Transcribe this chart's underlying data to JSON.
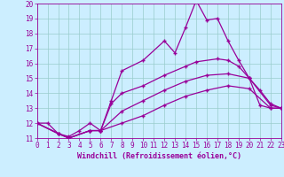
{
  "bg_color": "#cceeff",
  "line_color": "#990099",
  "grid_color": "#99cccc",
  "xmin": 0,
  "xmax": 23,
  "ymin": 11,
  "ymax": 20,
  "yticks": [
    11,
    12,
    13,
    14,
    15,
    16,
    17,
    18,
    19,
    20
  ],
  "xticks": [
    0,
    1,
    2,
    3,
    4,
    5,
    6,
    7,
    8,
    9,
    10,
    11,
    12,
    13,
    14,
    15,
    16,
    17,
    18,
    19,
    20,
    21,
    22,
    23
  ],
  "lines": [
    {
      "x": [
        0,
        1,
        2,
        3,
        4,
        5,
        6,
        7,
        8,
        10,
        12,
        13,
        14,
        15,
        16,
        17,
        18,
        19,
        20,
        21,
        22,
        23
      ],
      "y": [
        12.0,
        12.0,
        11.3,
        11.1,
        11.5,
        12.0,
        11.5,
        13.5,
        15.5,
        16.2,
        17.5,
        16.7,
        18.4,
        20.2,
        18.9,
        19.0,
        17.5,
        16.2,
        15.0,
        13.2,
        13.0,
        13.0
      ]
    },
    {
      "x": [
        0,
        2,
        3,
        5,
        6,
        7,
        8,
        10,
        12,
        14,
        15,
        17,
        18,
        19,
        20,
        21,
        22,
        23
      ],
      "y": [
        12.0,
        11.3,
        11.0,
        11.5,
        11.5,
        13.3,
        14.0,
        14.5,
        15.2,
        15.8,
        16.1,
        16.3,
        16.2,
        15.8,
        15.0,
        14.2,
        13.3,
        13.0
      ]
    },
    {
      "x": [
        0,
        2,
        3,
        5,
        6,
        8,
        10,
        12,
        14,
        16,
        18,
        20,
        22,
        23
      ],
      "y": [
        12.0,
        11.3,
        11.0,
        11.5,
        11.5,
        12.8,
        13.5,
        14.2,
        14.8,
        15.2,
        15.3,
        15.0,
        13.2,
        13.0
      ]
    },
    {
      "x": [
        0,
        2,
        3,
        5,
        6,
        8,
        10,
        12,
        14,
        16,
        18,
        20,
        22,
        23
      ],
      "y": [
        12.0,
        11.3,
        11.0,
        11.5,
        11.5,
        12.0,
        12.5,
        13.2,
        13.8,
        14.2,
        14.5,
        14.3,
        13.0,
        13.0
      ]
    }
  ],
  "xlabel": "Windchill (Refroidissement éolien,°C)",
  "xlabel_fontsize": 6,
  "tick_fontsize": 5.5,
  "linewidth": 0.9,
  "markersize": 3.5,
  "markeredgewidth": 1.0
}
